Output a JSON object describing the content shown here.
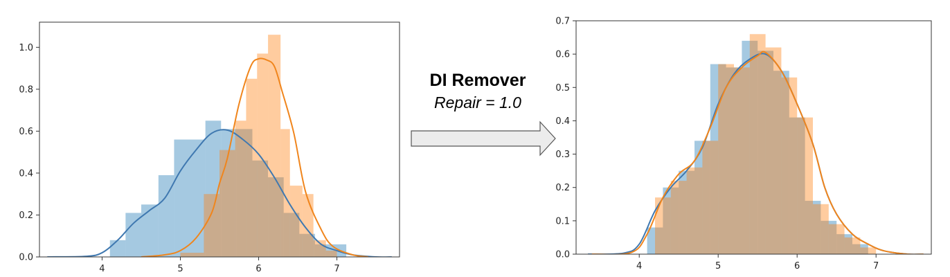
{
  "annotation": {
    "title": "DI Remover",
    "subtitle": "Repair = 1.0"
  },
  "colors": {
    "blue": "#1f77b4",
    "orange": "#ff7f0e",
    "blue_line": "#3f78b0",
    "orange_line": "#f0851c",
    "arrow_fill": "#ececec",
    "arrow_stroke": "#555555"
  },
  "chart_data": [
    {
      "type": "bar",
      "subtype": "histogram-with-kde",
      "xlim": [
        3.2,
        7.8
      ],
      "ylim": [
        0,
        1.12
      ],
      "xticks": [
        4,
        5,
        6,
        7
      ],
      "yticks": [
        0.0,
        0.2,
        0.4,
        0.6,
        0.8,
        1.0
      ],
      "ytick_labels": [
        "0.0",
        "0.2",
        "0.4",
        "0.6",
        "0.8",
        "1.0"
      ],
      "grid": false,
      "series": [
        {
          "color": "blue",
          "hist_edges": [
            4.1,
            4.3,
            4.5,
            4.72,
            4.92,
            5.12,
            5.32,
            5.52,
            5.72,
            5.92,
            6.12,
            6.32,
            6.52,
            6.72,
            6.92,
            7.12
          ],
          "hist_values": [
            0.08,
            0.21,
            0.25,
            0.39,
            0.56,
            0.56,
            0.65,
            0.61,
            0.61,
            0.46,
            0.38,
            0.21,
            0.11,
            0.06,
            0.06
          ],
          "kde": [
            [
              3.3,
              0.0
            ],
            [
              3.8,
              0.003
            ],
            [
              4.0,
              0.02
            ],
            [
              4.2,
              0.08
            ],
            [
              4.4,
              0.16
            ],
            [
              4.6,
              0.22
            ],
            [
              4.8,
              0.28
            ],
            [
              5.0,
              0.41
            ],
            [
              5.2,
              0.51
            ],
            [
              5.4,
              0.59
            ],
            [
              5.6,
              0.605
            ],
            [
              5.8,
              0.56
            ],
            [
              6.0,
              0.49
            ],
            [
              6.2,
              0.38
            ],
            [
              6.4,
              0.25
            ],
            [
              6.6,
              0.14
            ],
            [
              6.8,
              0.06
            ],
            [
              7.0,
              0.03
            ],
            [
              7.2,
              0.01
            ],
            [
              7.5,
              0.0
            ],
            [
              7.7,
              0.0
            ]
          ]
        },
        {
          "color": "orange",
          "hist_edges": [
            5.0,
            5.3,
            5.5,
            5.7,
            5.84,
            5.98,
            6.12,
            6.28,
            6.4,
            6.56,
            6.7,
            6.86,
            7.0
          ],
          "hist_values": [
            0.02,
            0.3,
            0.51,
            0.65,
            0.85,
            0.97,
            1.06,
            0.61,
            0.34,
            0.3,
            0.08,
            0.03
          ],
          "kde": [
            [
              4.5,
              0.0
            ],
            [
              4.8,
              0.01
            ],
            [
              5.0,
              0.03
            ],
            [
              5.2,
              0.09
            ],
            [
              5.4,
              0.21
            ],
            [
              5.5,
              0.35
            ],
            [
              5.6,
              0.47
            ],
            [
              5.75,
              0.73
            ],
            [
              5.9,
              0.91
            ],
            [
              6.0,
              0.945
            ],
            [
              6.1,
              0.94
            ],
            [
              6.2,
              0.91
            ],
            [
              6.3,
              0.79
            ],
            [
              6.45,
              0.59
            ],
            [
              6.6,
              0.31
            ],
            [
              6.8,
              0.13
            ],
            [
              6.95,
              0.05
            ],
            [
              7.2,
              0.01
            ],
            [
              7.4,
              0.0
            ]
          ]
        }
      ]
    },
    {
      "type": "bar",
      "subtype": "histogram-with-kde",
      "xlim": [
        3.2,
        7.7
      ],
      "ylim": [
        0,
        0.7
      ],
      "xticks": [
        4,
        5,
        6,
        7
      ],
      "yticks": [
        0.0,
        0.1,
        0.2,
        0.3,
        0.4,
        0.5,
        0.6,
        0.7
      ],
      "ytick_labels": [
        "0.0",
        "0.1",
        "0.2",
        "0.3",
        "0.4",
        "0.5",
        "0.6",
        "0.7"
      ],
      "grid": false,
      "series": [
        {
          "color": "blue",
          "hist_edges": [
            4.1,
            4.3,
            4.5,
            4.7,
            4.9,
            5.1,
            5.3,
            5.5,
            5.7,
            5.9,
            6.1,
            6.3,
            6.5,
            6.7,
            6.9
          ],
          "hist_values": [
            0.08,
            0.2,
            0.25,
            0.34,
            0.57,
            0.56,
            0.64,
            0.61,
            0.55,
            0.41,
            0.16,
            0.1,
            0.06,
            0.03
          ],
          "kde": [
            [
              3.35,
              0.0
            ],
            [
              3.8,
              0.003
            ],
            [
              4.0,
              0.03
            ],
            [
              4.2,
              0.13
            ],
            [
              4.4,
              0.2
            ],
            [
              4.6,
              0.25
            ],
            [
              4.8,
              0.32
            ],
            [
              5.0,
              0.45
            ],
            [
              5.2,
              0.54
            ],
            [
              5.4,
              0.585
            ],
            [
              5.6,
              0.6
            ],
            [
              5.8,
              0.55
            ],
            [
              6.0,
              0.45
            ],
            [
              6.2,
              0.33
            ],
            [
              6.35,
              0.2
            ],
            [
              6.5,
              0.12
            ],
            [
              6.7,
              0.06
            ],
            [
              6.9,
              0.03
            ],
            [
              7.1,
              0.01
            ],
            [
              7.4,
              0.0
            ],
            [
              7.6,
              0.0
            ]
          ]
        },
        {
          "color": "orange",
          "hist_edges": [
            4.2,
            4.4,
            4.6,
            4.8,
            5.0,
            5.2,
            5.4,
            5.6,
            5.8,
            6.0,
            6.2,
            6.4,
            6.6,
            6.8,
            7.0
          ],
          "hist_values": [
            0.17,
            0.22,
            0.26,
            0.34,
            0.57,
            0.56,
            0.66,
            0.62,
            0.53,
            0.41,
            0.15,
            0.09,
            0.05,
            0.02
          ],
          "kde": [
            [
              3.4,
              0.0
            ],
            [
              3.9,
              0.005
            ],
            [
              4.1,
              0.06
            ],
            [
              4.3,
              0.17
            ],
            [
              4.5,
              0.24
            ],
            [
              4.7,
              0.28
            ],
            [
              4.9,
              0.38
            ],
            [
              5.1,
              0.5
            ],
            [
              5.3,
              0.56
            ],
            [
              5.5,
              0.595
            ],
            [
              5.6,
              0.605
            ],
            [
              5.8,
              0.55
            ],
            [
              6.0,
              0.45
            ],
            [
              6.2,
              0.33
            ],
            [
              6.35,
              0.2
            ],
            [
              6.5,
              0.12
            ],
            [
              6.7,
              0.06
            ],
            [
              6.9,
              0.03
            ],
            [
              7.1,
              0.01
            ],
            [
              7.4,
              0.0
            ],
            [
              7.6,
              0.0
            ]
          ]
        }
      ]
    }
  ]
}
